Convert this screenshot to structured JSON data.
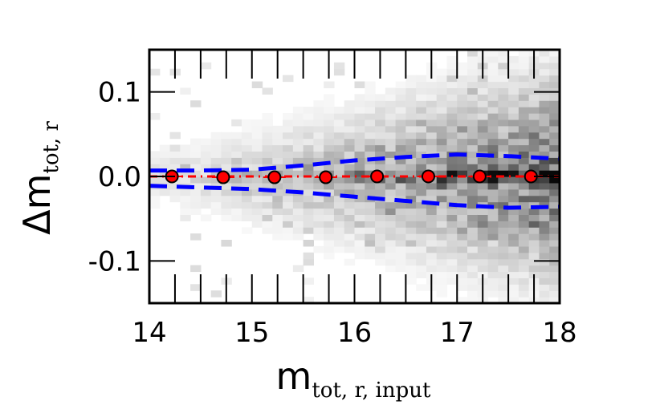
{
  "chart_data": {
    "type": "scatter",
    "title": "",
    "xlabel": {
      "main": "m",
      "sub": "tot, r, input"
    },
    "ylabel": {
      "main": "Δm",
      "sub": "tot, r"
    },
    "xlim": [
      14,
      18
    ],
    "ylim": [
      -0.15,
      0.15
    ],
    "xticks": [
      14,
      15,
      16,
      17,
      18
    ],
    "yticks": [
      -0.1,
      0.0,
      0.1
    ],
    "xtick_labels": [
      "14",
      "15",
      "16",
      "17",
      "18"
    ],
    "ytick_labels": [
      "-0.1",
      "0.0",
      "0.1"
    ],
    "minor_xtick_step": 0.25,
    "grid": false,
    "legend": "none",
    "colors": {
      "points": "#ff0000",
      "point_edge": "#000000",
      "median_line": "#ff0000",
      "envelope": "#0000ff",
      "density": "#000000"
    },
    "series": [
      {
        "kind": "binned-median-points",
        "x": [
          14.22,
          14.72,
          15.22,
          15.72,
          16.22,
          16.72,
          17.22,
          17.72
        ],
        "y": [
          0.0,
          -0.001,
          -0.001,
          -0.001,
          0.0,
          0.0,
          0.0,
          0.0
        ],
        "yerr": [
          0.002,
          0.002,
          0.002,
          0.001,
          0.001,
          0.001,
          0.001,
          0.001
        ]
      },
      {
        "kind": "median-line",
        "x": [
          14.0,
          18.0
        ],
        "y": [
          0.0,
          0.0
        ]
      },
      {
        "kind": "upper-envelope",
        "x": [
          14.0,
          14.5,
          15.0,
          15.5,
          16.0,
          16.5,
          17.0,
          17.5,
          18.0
        ],
        "y": [
          0.007,
          0.007,
          0.008,
          0.013,
          0.019,
          0.023,
          0.026,
          0.024,
          0.021
        ]
      },
      {
        "kind": "lower-envelope",
        "x": [
          14.0,
          14.5,
          15.0,
          15.5,
          16.0,
          16.5,
          17.0,
          17.5,
          18.0
        ],
        "y": [
          -0.011,
          -0.013,
          -0.015,
          -0.019,
          -0.024,
          -0.029,
          -0.034,
          -0.037,
          -0.036
        ]
      }
    ],
    "density": {
      "kind": "2d-histogram",
      "x_bin_width": 0.1,
      "y_bin_width": 0.0075,
      "center": 0.0,
      "core_width": [
        0.003,
        0.012
      ],
      "halo_width": [
        0.02,
        0.075
      ],
      "intensity": [
        0.2,
        1.0
      ]
    }
  }
}
